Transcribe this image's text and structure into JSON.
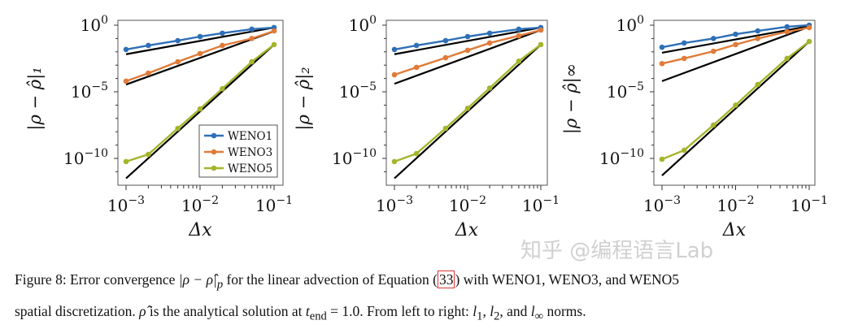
{
  "colors": {
    "WENO1": "#2e6fb7",
    "WENO3": "#e07b39",
    "WENO5": "#a4b52b",
    "reference": "#000000"
  },
  "chart_data": [
    {
      "type": "line",
      "xscale": "log",
      "yscale": "log",
      "xlabel": "Δx",
      "ylabel": "|ρ − ρ̂|₁",
      "xticks": [
        "10^-3",
        "10^-2",
        "10^-1"
      ],
      "yticks": [
        "10^0",
        "10^-5",
        "10^-10"
      ],
      "legend": "bottom-right",
      "x": [
        0.001,
        0.002,
        0.005,
        0.01,
        0.02,
        0.05,
        0.1
      ],
      "series": [
        {
          "name": "WENO1",
          "values": [
            0.015,
            0.03,
            0.069,
            0.14,
            0.25,
            0.5,
            0.66
          ]
        },
        {
          "name": "WENO3",
          "values": [
            6.3e-05,
            0.00025,
            0.0018,
            0.0074,
            0.03,
            0.1,
            0.37
          ]
        },
        {
          "name": "WENO5",
          "values": [
            5.8e-11,
            2e-10,
            1.8e-08,
            5.2e-07,
            1.7e-05,
            0.0018,
            0.035
          ]
        }
      ],
      "reference_lines": [
        [
          [
            0.001,
            0.0066
          ],
          [
            0.1,
            0.66
          ]
        ],
        [
          [
            0.001,
            3.5e-05
          ],
          [
            0.1,
            0.35
          ]
        ],
        [
          [
            0.001,
            3.2e-12
          ],
          [
            0.1,
            0.035
          ]
        ]
      ]
    },
    {
      "type": "line",
      "xscale": "log",
      "yscale": "log",
      "xlabel": "Δx",
      "ylabel": "|ρ − ρ̂|₂",
      "xticks": [
        "10^-3",
        "10^-2",
        "10^-1"
      ],
      "yticks": [
        "10^0",
        "10^-5",
        "10^-10"
      ],
      "x": [
        0.001,
        0.002,
        0.005,
        0.01,
        0.02,
        0.05,
        0.1
      ],
      "series": [
        {
          "name": "WENO1",
          "values": [
            0.015,
            0.03,
            0.069,
            0.14,
            0.25,
            0.5,
            0.66
          ]
        },
        {
          "name": "WENO3",
          "values": [
            0.00019,
            0.00068,
            0.0036,
            0.013,
            0.046,
            0.16,
            0.43
          ]
        },
        {
          "name": "WENO5",
          "values": [
            5.8e-11,
            2.3e-10,
            1.8e-08,
            5.8e-07,
            1.9e-05,
            0.002,
            0.035
          ]
        }
      ],
      "reference_lines": [
        [
          [
            0.001,
            0.0066
          ],
          [
            0.1,
            0.66
          ]
        ],
        [
          [
            0.001,
            4e-05
          ],
          [
            0.1,
            0.43
          ]
        ],
        [
          [
            0.001,
            3.2e-12
          ],
          [
            0.1,
            0.035
          ]
        ]
      ]
    },
    {
      "type": "line",
      "xscale": "log",
      "yscale": "log",
      "xlabel": "Δx",
      "ylabel": "|ρ − ρ̂|∞",
      "xticks": [
        "10^-3",
        "10^-2",
        "10^-1"
      ],
      "yticks": [
        "10^0",
        "10^-5",
        "10^-10"
      ],
      "x": [
        0.001,
        0.002,
        0.005,
        0.01,
        0.02,
        0.05,
        0.1
      ],
      "series": [
        {
          "name": "WENO1",
          "values": [
            0.022,
            0.046,
            0.1,
            0.21,
            0.37,
            0.76,
            1.0
          ]
        },
        {
          "name": "WENO3",
          "values": [
            0.0013,
            0.0032,
            0.011,
            0.035,
            0.1,
            0.32,
            0.66
          ]
        },
        {
          "name": "WENO5",
          "values": [
            8.7e-11,
            4.1e-10,
            3.2e-08,
            1e-06,
            3.5e-05,
            0.0032,
            0.06
          ]
        }
      ],
      "reference_lines": [
        [
          [
            0.001,
            0.0085
          ],
          [
            0.1,
            0.85
          ]
        ],
        [
          [
            0.001,
            6.3e-05
          ],
          [
            0.1,
            0.76
          ]
        ],
        [
          [
            0.001,
            5.2e-12
          ],
          [
            0.1,
            0.06
          ]
        ]
      ]
    }
  ],
  "caption": {
    "l1a": "Figure 8: Error convergence ",
    "l1m": "|ρ − ρ̂|",
    "l1p": "p",
    "l1b": " for the linear advection of Equation ",
    "eq": "33",
    "l1c": " with WENO1, WENO3, and WENO5",
    "l2a": "spatial discretization. ",
    "rhohat": "ρ̂",
    "l2b": " is the analytical solution at ",
    "t": "t",
    "tsub": "end",
    "l2c": " = 1.0. From left to right: ",
    "n1": "l",
    "n1s": "1",
    "n2": "l",
    "n2s": "2",
    "n3": "l",
    "n3s": "∞",
    "l2d": " norms.",
    "sep1": ", ",
    "sep2": ", and "
  },
  "watermark": "知乎 @编程语言Lab"
}
